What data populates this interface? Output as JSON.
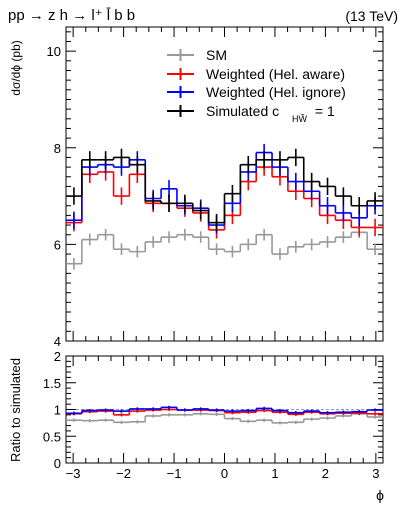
{
  "chart_data": [
    {
      "type": "line",
      "title": "pp → z h → l⁺ l̄ b b",
      "energy_label": "(13 TeV)",
      "ylabel": "dσ/dϕ (pb)",
      "xlabel": "ϕ",
      "xlim": [
        -3.1416,
        3.1416
      ],
      "ylim": [
        4,
        10.5
      ],
      "yticks": [
        "4",
        "6",
        "8",
        "10"
      ],
      "legend_position": "top-right",
      "legend": [
        {
          "label": "SM",
          "color": "#999999"
        },
        {
          "label": "Weighted (Hel. aware)",
          "color": "#ff0000"
        },
        {
          "label": "Weighted (Hel. ignore)",
          "color": "#0000ff"
        },
        {
          "label": "Simulated c",
          "sub": "HW̃",
          "suffix": " = 1",
          "color": "#000000"
        }
      ],
      "bins": 20,
      "series": [
        {
          "name": "SM",
          "color": "#999999",
          "values": [
            5.6,
            6.1,
            6.2,
            5.9,
            5.85,
            6.05,
            6.15,
            6.2,
            6.15,
            5.9,
            5.85,
            6.0,
            6.2,
            5.8,
            5.95,
            6.0,
            6.05,
            6.15,
            6.25,
            5.9
          ],
          "errors": [
            0.12,
            0.12,
            0.12,
            0.12,
            0.12,
            0.12,
            0.12,
            0.12,
            0.12,
            0.12,
            0.12,
            0.12,
            0.12,
            0.12,
            0.12,
            0.12,
            0.12,
            0.12,
            0.12,
            0.12
          ]
        },
        {
          "name": "Weighted (Hel. aware)",
          "color": "#ff0000",
          "values": [
            6.45,
            7.45,
            7.5,
            7.0,
            7.45,
            6.85,
            6.85,
            6.75,
            6.65,
            6.3,
            6.6,
            7.3,
            7.6,
            7.4,
            7.1,
            6.95,
            6.6,
            6.5,
            6.35,
            6.35
          ],
          "errors": [
            0.18,
            0.18,
            0.18,
            0.18,
            0.18,
            0.18,
            0.18,
            0.18,
            0.18,
            0.18,
            0.18,
            0.18,
            0.18,
            0.18,
            0.18,
            0.18,
            0.18,
            0.18,
            0.18,
            0.18
          ]
        },
        {
          "name": "Weighted (Hel. ignore)",
          "color": "#0000ff",
          "values": [
            6.5,
            7.6,
            7.65,
            7.6,
            7.75,
            6.95,
            7.15,
            6.8,
            6.75,
            6.4,
            6.85,
            7.5,
            7.9,
            7.6,
            7.3,
            7.1,
            6.8,
            6.65,
            6.55,
            6.8
          ],
          "errors": [
            0.18,
            0.18,
            0.18,
            0.18,
            0.18,
            0.18,
            0.18,
            0.18,
            0.18,
            0.18,
            0.18,
            0.18,
            0.18,
            0.18,
            0.18,
            0.18,
            0.18,
            0.18,
            0.18,
            0.18
          ]
        },
        {
          "name": "Simulated c_HW̃ = 1",
          "color": "#000000",
          "values": [
            7.0,
            7.75,
            7.75,
            7.8,
            7.65,
            6.9,
            6.85,
            6.85,
            6.7,
            6.45,
            7.05,
            7.65,
            7.75,
            7.75,
            7.8,
            7.3,
            7.2,
            7.0,
            6.8,
            6.9
          ],
          "errors": [
            0.18,
            0.18,
            0.18,
            0.18,
            0.18,
            0.18,
            0.18,
            0.18,
            0.18,
            0.18,
            0.18,
            0.18,
            0.18,
            0.18,
            0.18,
            0.18,
            0.18,
            0.18,
            0.18,
            0.18
          ]
        }
      ]
    },
    {
      "type": "line",
      "ylabel": "Ratio to simulated",
      "xlabel": "ϕ",
      "xlim": [
        -3.1416,
        3.1416
      ],
      "ylim": [
        0,
        2
      ],
      "yticks": [
        "0",
        "0.5",
        "1",
        "1.5",
        "2"
      ],
      "xticks": [
        "−3",
        "−2",
        "−1",
        "0",
        "1",
        "2",
        "3"
      ],
      "reference_line": 1,
      "series": [
        {
          "name": "SM",
          "color": "#999999",
          "values": [
            0.8,
            0.79,
            0.8,
            0.76,
            0.77,
            0.88,
            0.9,
            0.9,
            0.92,
            0.91,
            0.83,
            0.78,
            0.8,
            0.75,
            0.76,
            0.82,
            0.84,
            0.88,
            0.92,
            0.86
          ],
          "errors": [
            0.03,
            0.03,
            0.03,
            0.03,
            0.03,
            0.03,
            0.03,
            0.03,
            0.03,
            0.03,
            0.03,
            0.03,
            0.03,
            0.03,
            0.03,
            0.03,
            0.03,
            0.03,
            0.03,
            0.03
          ]
        },
        {
          "name": "Weighted (Hel. aware)",
          "color": "#ff0000",
          "values": [
            0.92,
            0.96,
            0.97,
            0.9,
            0.97,
            0.99,
            1.0,
            0.99,
            0.99,
            0.98,
            0.94,
            0.95,
            0.98,
            0.95,
            0.91,
            0.95,
            0.92,
            0.93,
            0.93,
            0.92
          ],
          "errors": [
            0.03,
            0.03,
            0.03,
            0.03,
            0.03,
            0.03,
            0.03,
            0.03,
            0.03,
            0.03,
            0.03,
            0.03,
            0.03,
            0.03,
            0.03,
            0.03,
            0.03,
            0.03,
            0.03,
            0.03
          ]
        },
        {
          "name": "Weighted (Hel. ignore)",
          "color": "#0000ff",
          "values": [
            0.93,
            0.98,
            0.99,
            0.97,
            1.01,
            1.01,
            1.04,
            0.99,
            1.01,
            0.99,
            0.97,
            0.98,
            1.02,
            0.98,
            0.94,
            0.97,
            0.94,
            0.95,
            0.96,
            0.99
          ],
          "errors": [
            0.03,
            0.03,
            0.03,
            0.03,
            0.03,
            0.03,
            0.03,
            0.03,
            0.03,
            0.03,
            0.03,
            0.03,
            0.03,
            0.03,
            0.03,
            0.03,
            0.03,
            0.03,
            0.03,
            0.03
          ]
        }
      ]
    }
  ]
}
